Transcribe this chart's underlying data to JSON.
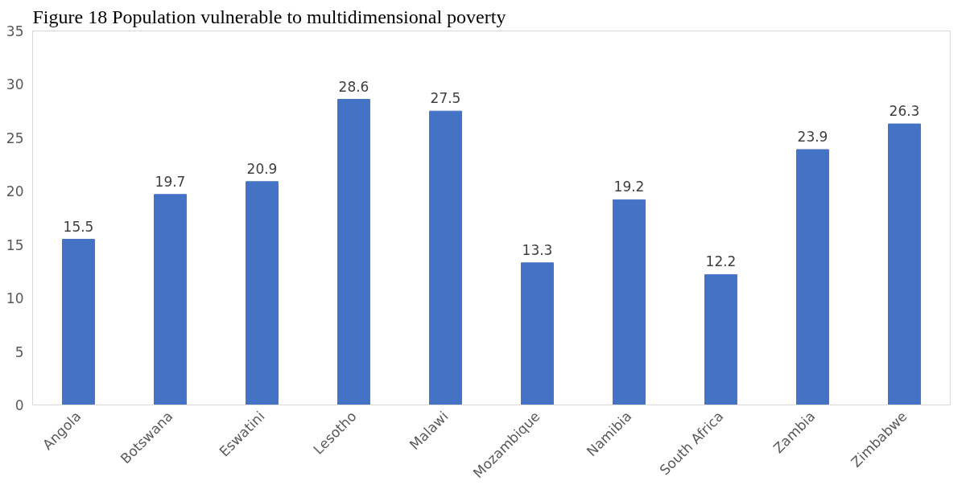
{
  "chart_data": {
    "type": "bar",
    "title": "Figure 18 Population vulnerable to multidimensional poverty",
    "categories": [
      "Angola",
      "Botswana",
      "Eswatini",
      "Lesotho",
      "Malawi",
      "Mozambique",
      "Namibia",
      "South Africa",
      "Zambia",
      "Zimbabwe"
    ],
    "values": [
      15.5,
      19.7,
      20.9,
      28.6,
      27.5,
      13.3,
      19.2,
      12.2,
      23.9,
      26.3
    ],
    "color": "#4472c4",
    "ylim": [
      0,
      35
    ],
    "yticks": [
      0,
      5,
      10,
      15,
      20,
      25,
      30,
      35
    ],
    "grid": false,
    "data_labels": true
  }
}
